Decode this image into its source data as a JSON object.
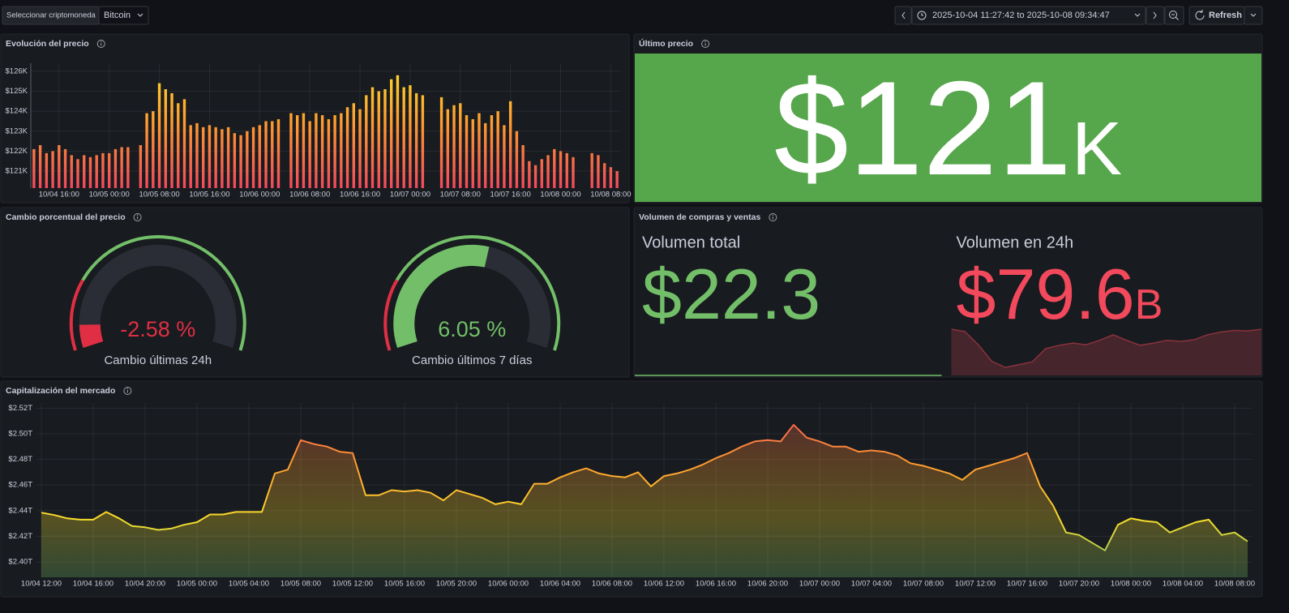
{
  "toolbar": {
    "variable_label": "Seleccionar criptomoneda",
    "variable_value": "Bitcoin",
    "time_range": "2025-10-04 11:27:42 to 2025-10-08 09:34:47",
    "refresh": "Refresh"
  },
  "chart_data": [
    {
      "type": "bar",
      "title": "Evolución del precio",
      "categories": [
        null,
        null,
        null,
        null,
        "10/04 16:00",
        null,
        null,
        null,
        null,
        null,
        null,
        null,
        "10/05 00:00",
        null,
        null,
        null,
        null,
        null,
        null,
        null,
        "10/05 08:00",
        null,
        null,
        null,
        null,
        null,
        null,
        null,
        "10/05 16:00",
        null,
        null,
        null,
        null,
        null,
        null,
        null,
        "10/06 00:00",
        null,
        null,
        null,
        null,
        null,
        null,
        null,
        "10/06 08:00",
        null,
        null,
        null,
        null,
        null,
        null,
        null,
        "10/06 16:00",
        null,
        null,
        null,
        null,
        null,
        null,
        null,
        "10/07 00:00",
        null,
        null,
        null,
        null,
        null,
        null,
        null,
        "10/07 08:00",
        null,
        null,
        null,
        null,
        null,
        null,
        null,
        "10/07 16:00",
        null,
        null,
        null,
        null,
        null,
        null,
        null,
        "10/08 00:00",
        null,
        null,
        null,
        null,
        null,
        null,
        null,
        "10/08 08:00",
        null
      ],
      "values": [
        122100,
        122300,
        121900,
        122000,
        122300,
        122100,
        121800,
        121600,
        121800,
        121700,
        121800,
        121900,
        121900,
        122100,
        122200,
        122200,
        null,
        122300,
        123900,
        124000,
        125400,
        125100,
        124900,
        124400,
        124600,
        123300,
        123400,
        123200,
        123300,
        123200,
        123100,
        123200,
        122900,
        122800,
        123000,
        123200,
        123300,
        123500,
        123500,
        123600,
        null,
        123900,
        123800,
        123900,
        123500,
        123900,
        123800,
        123600,
        123800,
        123900,
        124200,
        124400,
        124100,
        124800,
        125200,
        125000,
        125100,
        125600,
        125800,
        125200,
        125300,
        124900,
        124800,
        null,
        null,
        124700,
        124100,
        124300,
        124400,
        123800,
        123600,
        123900,
        123400,
        123800,
        124000,
        123300,
        124500,
        123000,
        122300,
        121500,
        121300,
        121600,
        121800,
        122100,
        122000,
        121900,
        121700,
        null,
        null,
        121900,
        121800,
        121400,
        121200,
        121000
      ],
      "ylim": [
        120150,
        126400
      ],
      "yticks": [
        {
          "value": 121000,
          "label": "$121K"
        },
        {
          "value": 122000,
          "label": "$122K"
        },
        {
          "value": 123000,
          "label": "$123K"
        },
        {
          "value": 124000,
          "label": "$124K"
        },
        {
          "value": 125000,
          "label": "$125K"
        },
        {
          "value": 126000,
          "label": "$126K"
        }
      ],
      "color_scale": [
        "#f2495c",
        "#ff9830",
        "#fade2a"
      ],
      "grid": true
    },
    {
      "type": "stat",
      "title": "Último precio",
      "color_mode": "background",
      "stats": [
        {
          "value": 121000,
          "value_label": "$121K",
          "color": "#56a64b"
        }
      ]
    },
    {
      "type": "gauge",
      "title": "Cambio porcentual del precio",
      "categories": [
        "Cambio últimas 24h",
        "Cambio últimos 7 días"
      ],
      "values": [
        -2.58,
        6.05
      ],
      "value_labels": [
        "-2.58 %",
        "6.05 %"
      ],
      "range": [
        -4,
        14
      ],
      "threshold": 0,
      "threshold_colors": [
        "#e02f44",
        "#73bf69"
      ]
    },
    {
      "type": "stat",
      "title": "Volumen de compras y ventas",
      "color_mode": "value",
      "stats": [
        {
          "name": "Volumen total",
          "value": 22.3,
          "value_label": "$22.3",
          "color": "#73bf69"
        },
        {
          "name": "Volumen en 24h",
          "value": 79.6,
          "value_label": "$79.6B",
          "color": "#f2495c",
          "sparkline": [
            80,
            79.6,
            77.2,
            74.2,
            73.1,
            73.6,
            74.1,
            76.5,
            77.1,
            77.5,
            77.2,
            78,
            79,
            78,
            77.1,
            77.5,
            78,
            77.8,
            78.1,
            79,
            79.5,
            79.8,
            79.7,
            80
          ]
        }
      ]
    },
    {
      "type": "line",
      "title": "Capitalización del mercado",
      "categories": [
        "10/04 12:00",
        null,
        null,
        null,
        "10/04 16:00",
        null,
        null,
        null,
        "10/04 20:00",
        null,
        null,
        null,
        "10/05 00:00",
        null,
        null,
        null,
        "10/05 04:00",
        null,
        null,
        null,
        "10/05 08:00",
        null,
        null,
        null,
        "10/05 12:00",
        null,
        null,
        null,
        "10/05 16:00",
        null,
        null,
        null,
        "10/05 20:00",
        null,
        null,
        null,
        "10/06 00:00",
        null,
        null,
        null,
        "10/06 04:00",
        null,
        null,
        null,
        "10/06 08:00",
        null,
        null,
        null,
        "10/06 12:00",
        null,
        null,
        null,
        "10/06 16:00",
        null,
        null,
        null,
        "10/06 20:00",
        null,
        null,
        null,
        "10/07 00:00",
        null,
        null,
        null,
        "10/07 04:00",
        null,
        null,
        null,
        "10/07 08:00",
        null,
        null,
        null,
        "10/07 12:00",
        null,
        null,
        null,
        "10/07 16:00",
        null,
        null,
        null,
        "10/07 20:00",
        null,
        null,
        null,
        "10/08 00:00",
        null,
        null,
        null,
        "10/08 04:00",
        null,
        null,
        null,
        "10/08 08:00",
        null
      ],
      "values": [
        2.4385,
        2.4366,
        2.434,
        2.433,
        2.433,
        2.439,
        2.434,
        2.428,
        2.427,
        2.425,
        2.426,
        2.429,
        2.431,
        2.437,
        2.437,
        2.439,
        2.439,
        2.439,
        2.469,
        2.472,
        2.495,
        2.492,
        2.49,
        2.486,
        2.485,
        2.452,
        2.452,
        2.456,
        2.455,
        2.456,
        2.454,
        2.448,
        2.456,
        2.453,
        2.45,
        2.445,
        2.447,
        2.445,
        2.461,
        2.461,
        2.466,
        2.47,
        2.473,
        2.469,
        2.467,
        2.466,
        2.47,
        2.459,
        2.467,
        2.469,
        2.472,
        2.476,
        2.481,
        2.485,
        2.49,
        2.494,
        2.495,
        2.494,
        2.507,
        2.497,
        2.494,
        2.49,
        2.49,
        2.486,
        2.487,
        2.486,
        2.483,
        2.477,
        2.475,
        2.472,
        2.469,
        2.464,
        2.472,
        2.475,
        2.478,
        2.481,
        2.485,
        2.459,
        2.444,
        2.423,
        2.421,
        2.415,
        2.409,
        2.429,
        2.434,
        2.432,
        2.431,
        2.423,
        2.427,
        2.431,
        2.433,
        2.421,
        2.423,
        2.416
      ],
      "ylim": [
        2.388,
        2.524
      ],
      "yticks": [
        {
          "value": 2.4,
          "label": "$2.40T"
        },
        {
          "value": 2.42,
          "label": "$2.42T"
        },
        {
          "value": 2.44,
          "label": "$2.44T"
        },
        {
          "value": 2.46,
          "label": "$2.46T"
        },
        {
          "value": 2.48,
          "label": "$2.48T"
        },
        {
          "value": 2.5,
          "label": "$2.50T"
        },
        {
          "value": 2.52,
          "label": "$2.52T"
        }
      ],
      "color_scale": [
        "#73bf69",
        "#fade2a",
        "#ff9830",
        "#f2495c"
      ],
      "grid": true
    }
  ]
}
